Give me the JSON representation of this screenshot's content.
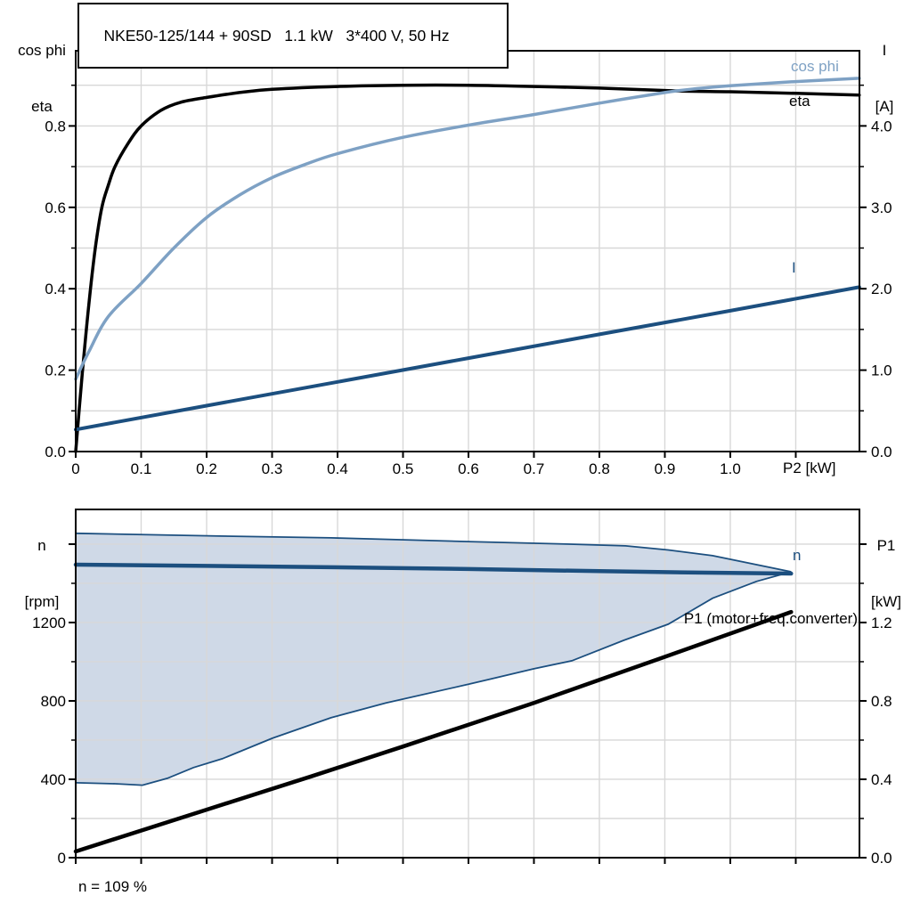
{
  "colors": {
    "black": "#000000",
    "steel_blue": "#7ea1c4",
    "dark_blue": "#1c4f7f",
    "area_fill": "#cfd9e7",
    "grid": "#d8d8d8",
    "axis": "#000000"
  },
  "chart_data": [
    {
      "type": "line",
      "title": "NKE50-125/144 + 90SD   1.1 kW   3*400 V, 50 Hz",
      "xlabel": "P2 [kW]",
      "ylabel_left_lines": [
        "cos phi",
        "eta"
      ],
      "ylabel_right_lines": [
        "I",
        "[A]"
      ],
      "xlim": [
        0,
        1.1973
      ],
      "ylim_left": [
        0,
        0.9847
      ],
      "ylim_right": [
        0,
        4.923
      ],
      "x_ticks": {
        "values": [
          0,
          0.1,
          0.2,
          0.3,
          0.4,
          0.5,
          0.6,
          0.7,
          0.8,
          0.9,
          1.0,
          1.1
        ],
        "labels": [
          "0",
          "0.1",
          "0.2",
          "0.3",
          "0.4",
          "0.5",
          "0.6",
          "0.7",
          "0.8",
          "0.9",
          "1.0",
          ""
        ]
      },
      "y_ticks_left": {
        "values": [
          0,
          0.2,
          0.4,
          0.6,
          0.8
        ],
        "labels": [
          "0.0",
          "0.2",
          "0.4",
          "0.6",
          "0.8"
        ],
        "minor": [
          0.1,
          0.3,
          0.5,
          0.7,
          0.9
        ]
      },
      "y_ticks_right": {
        "values": [
          0,
          1,
          2,
          3,
          4
        ],
        "labels": [
          "0.0",
          "1.0",
          "2.0",
          "3.0",
          "4.0"
        ],
        "minor": [
          0.5,
          1.5,
          2.5,
          3.5,
          4.5
        ]
      },
      "x_grid": [
        0.1,
        0.2,
        0.3,
        0.4,
        0.5,
        0.6,
        0.7,
        0.8,
        0.9,
        1.0,
        1.1
      ],
      "y_grid_left": [
        0.1,
        0.2,
        0.3,
        0.4,
        0.5,
        0.6,
        0.7,
        0.8,
        0.9
      ],
      "series": [
        {
          "name": "eta",
          "label": "eta",
          "color": "black",
          "axis": "left",
          "width": 3.5,
          "smooth": true,
          "points": [
            [
              0,
              0
            ],
            [
              0.01,
              0.19
            ],
            [
              0.02,
              0.36
            ],
            [
              0.03,
              0.5
            ],
            [
              0.04,
              0.6
            ],
            [
              0.05,
              0.655
            ],
            [
              0.06,
              0.7
            ],
            [
              0.08,
              0.757
            ],
            [
              0.1,
              0.8
            ],
            [
              0.13,
              0.838
            ],
            [
              0.16,
              0.858
            ],
            [
              0.2,
              0.87
            ],
            [
              0.25,
              0.882
            ],
            [
              0.3,
              0.89
            ],
            [
              0.4,
              0.897
            ],
            [
              0.5,
              0.9
            ],
            [
              0.6,
              0.9
            ],
            [
              0.7,
              0.897
            ],
            [
              0.8,
              0.893
            ],
            [
              0.92,
              0.886
            ],
            [
              1.0,
              0.884
            ],
            [
              1.1,
              0.88
            ],
            [
              1.197,
              0.876
            ]
          ]
        },
        {
          "name": "cos phi",
          "label": "cos phi",
          "color": "steel_blue",
          "axis": "left",
          "width": 3.5,
          "smooth": true,
          "points": [
            [
              0,
              0.178
            ],
            [
              0.02,
              0.245
            ],
            [
              0.05,
              0.332
            ],
            [
              0.1,
              0.413
            ],
            [
              0.15,
              0.5
            ],
            [
              0.2,
              0.575
            ],
            [
              0.25,
              0.63
            ],
            [
              0.3,
              0.673
            ],
            [
              0.35,
              0.705
            ],
            [
              0.4,
              0.732
            ],
            [
              0.5,
              0.772
            ],
            [
              0.6,
              0.802
            ],
            [
              0.7,
              0.828
            ],
            [
              0.8,
              0.856
            ],
            [
              0.9,
              0.882
            ],
            [
              0.95,
              0.892
            ],
            [
              1.0,
              0.899
            ],
            [
              1.1,
              0.909
            ],
            [
              1.197,
              0.917
            ]
          ]
        },
        {
          "name": "I",
          "label": "I",
          "color": "dark_blue",
          "axis": "right",
          "width": 4,
          "smooth": false,
          "points": [
            [
              0,
              0.27
            ],
            [
              0.2,
              0.563
            ],
            [
              0.4,
              0.855
            ],
            [
              0.6,
              1.148
            ],
            [
              0.8,
              1.44
            ],
            [
              1.0,
              1.73
            ],
            [
              1.197,
              2.02
            ]
          ]
        }
      ]
    },
    {
      "type": "line",
      "title": "",
      "xlabel": "",
      "ylabel_left_lines": [
        "n",
        "[rpm]"
      ],
      "ylabel_right_lines": [
        "P1",
        "[kW]"
      ],
      "footnote": "n = 109 %",
      "xlim": [
        0,
        1.1973
      ],
      "ylim_left": [
        0,
        1777
      ],
      "ylim_right": [
        0,
        1.777
      ],
      "x_ticks": {
        "values": [
          0,
          0.1,
          0.2,
          0.3,
          0.4,
          0.5,
          0.6,
          0.7,
          0.8,
          0.9,
          1.0,
          1.1
        ],
        "labels": [
          "",
          "",
          "",
          "",
          "",
          "",
          "",
          "",
          "",
          "",
          "",
          ""
        ]
      },
      "y_ticks_left": {
        "values": [
          0,
          400,
          800,
          1200,
          1600
        ],
        "labels": [
          "0",
          "400",
          "800",
          "1200",
          ""
        ],
        "minor": [
          200,
          600,
          1000,
          1400
        ]
      },
      "y_ticks_right": {
        "values": [
          0,
          0.4,
          0.8,
          1.2,
          1.6
        ],
        "labels": [
          "0.0",
          "0.4",
          "0.8",
          "1.2",
          ""
        ],
        "minor": [
          0.2,
          0.6,
          1.0,
          1.4
        ]
      },
      "x_grid": [
        0.1,
        0.2,
        0.3,
        0.4,
        0.5,
        0.6,
        0.7,
        0.8,
        0.9,
        1.0,
        1.1
      ],
      "y_grid_left": [
        200,
        400,
        600,
        800,
        1000,
        1200,
        1400,
        1600
      ],
      "area": {
        "name": "speed-control-range",
        "fill": "area_fill",
        "border_color": "dark_blue",
        "border_width": 1.8,
        "upper_points": [
          [
            0,
            1655
          ],
          [
            0.22,
            1641
          ],
          [
            0.39,
            1632
          ],
          [
            0.6,
            1613
          ],
          [
            0.75,
            1600
          ],
          [
            0.84,
            1591
          ],
          [
            0.905,
            1570
          ],
          [
            0.973,
            1541
          ],
          [
            1.04,
            1495
          ],
          [
            1.093,
            1459
          ]
        ],
        "lower_points": [
          [
            0,
            382
          ],
          [
            0.06,
            377
          ],
          [
            0.102,
            370
          ],
          [
            0.14,
            405
          ],
          [
            0.18,
            460
          ],
          [
            0.224,
            505
          ],
          [
            0.3,
            609
          ],
          [
            0.39,
            714
          ],
          [
            0.474,
            790
          ],
          [
            0.6,
            885
          ],
          [
            0.7,
            964
          ],
          [
            0.758,
            1005
          ],
          [
            0.837,
            1109
          ],
          [
            0.905,
            1191
          ],
          [
            0.973,
            1324
          ],
          [
            1.04,
            1410
          ],
          [
            1.093,
            1459
          ]
        ]
      },
      "series": [
        {
          "name": "n",
          "label": "n",
          "color": "dark_blue",
          "axis": "left",
          "width": 4.5,
          "smooth": false,
          "points": [
            [
              0,
              1495
            ],
            [
              0.2,
              1489
            ],
            [
              0.39,
              1482
            ],
            [
              0.6,
              1473
            ],
            [
              0.8,
              1462
            ],
            [
              0.95,
              1455
            ],
            [
              1.093,
              1450
            ]
          ]
        },
        {
          "name": "P1",
          "label": "P1 (motor+freq.converter)",
          "color": "black",
          "axis": "right",
          "width": 4.5,
          "smooth": false,
          "points": [
            [
              0,
              0.032
            ],
            [
              0.2,
              0.245
            ],
            [
              0.36,
              0.415
            ],
            [
              0.5,
              0.567
            ],
            [
              0.7,
              0.79
            ],
            [
              0.9,
              1.025
            ],
            [
              1.093,
              1.254
            ]
          ]
        }
      ]
    }
  ]
}
